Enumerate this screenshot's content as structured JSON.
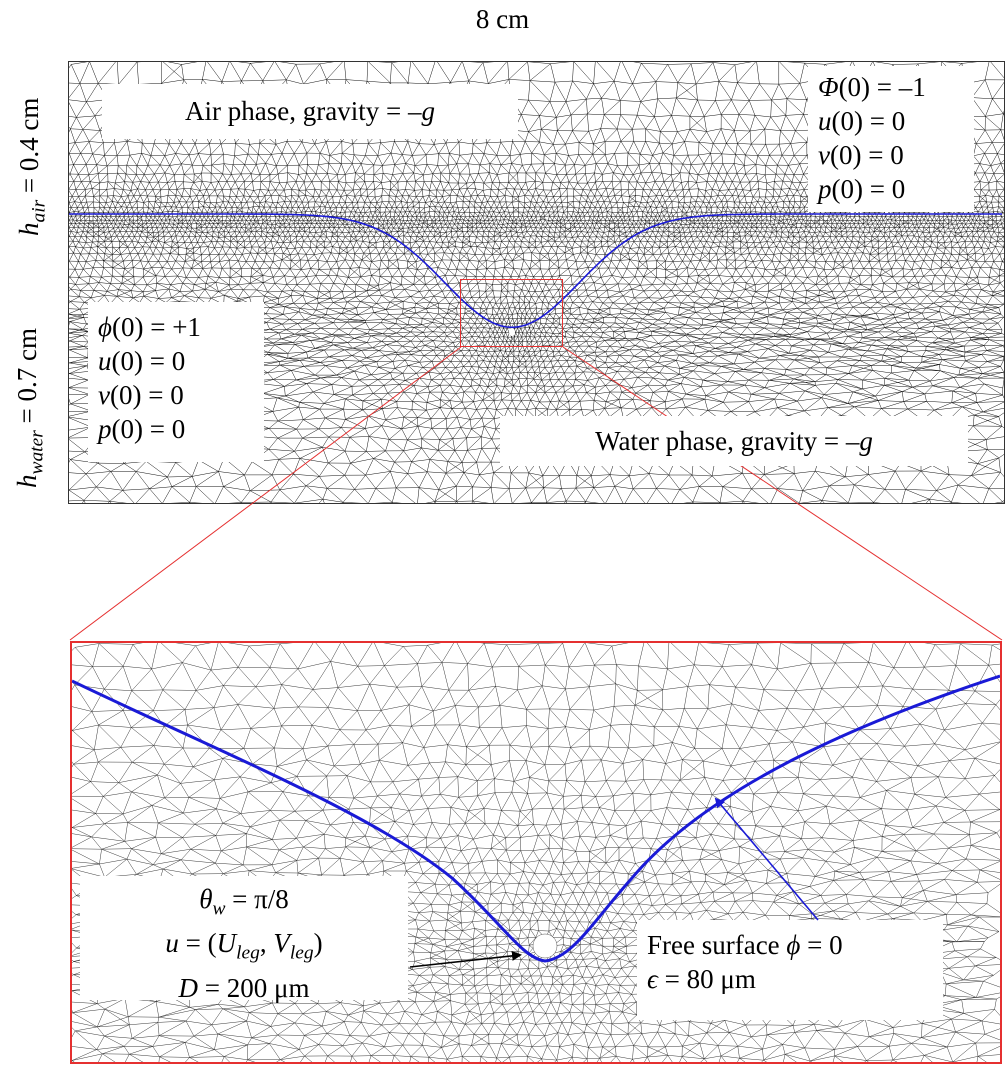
{
  "width_label": "8 cm",
  "h_air_label": {
    "sym": "h",
    "sub": "air",
    "rest": " = 0.4 cm"
  },
  "h_water_label": {
    "sym": "h",
    "sub": "water",
    "rest": " = 0.7 cm"
  },
  "air_phase": {
    "text": "Air phase, gravity = –",
    "g": "g"
  },
  "water_phase": {
    "text": "Water phase, gravity = –",
    "g": "g"
  },
  "air_init": {
    "phi": {
      "sym": "Φ",
      "rest": "(0) = –1"
    },
    "u": {
      "sym": "u",
      "rest": "(0) = 0"
    },
    "v": {
      "sym": "v",
      "rest": "(0) = 0"
    },
    "p": {
      "sym": "p",
      "rest": "(0) = 0"
    }
  },
  "water_init": {
    "phi": {
      "sym": "ϕ",
      "rest": "(0) = +1"
    },
    "u": {
      "sym": "u",
      "rest": "(0) = 0"
    },
    "v": {
      "sym": "v",
      "rest": "(0) = 0"
    },
    "p": {
      "sym": "p",
      "rest": "(0) = 0"
    }
  },
  "leg": {
    "theta": {
      "sym": "θ",
      "sub": "w",
      "rest": " = π/8"
    },
    "u": {
      "sym": "u",
      "eq": " = (",
      "U": "U",
      "Usub": "leg",
      "comma": ", ",
      "V": "V",
      "Vsub": "leg",
      "close": ")"
    },
    "d": {
      "sym": "D",
      "rest": " = 200 μm"
    }
  },
  "free_surface": {
    "text": "Free surface ",
    "sym": "ϕ",
    "rest": " = 0"
  },
  "epsilon": {
    "sym": "ϵ",
    "rest": " = 80 μm"
  },
  "colors": {
    "interface": "#1a1ad6",
    "zoom_box": "#e53030",
    "mesh": "#111111"
  }
}
